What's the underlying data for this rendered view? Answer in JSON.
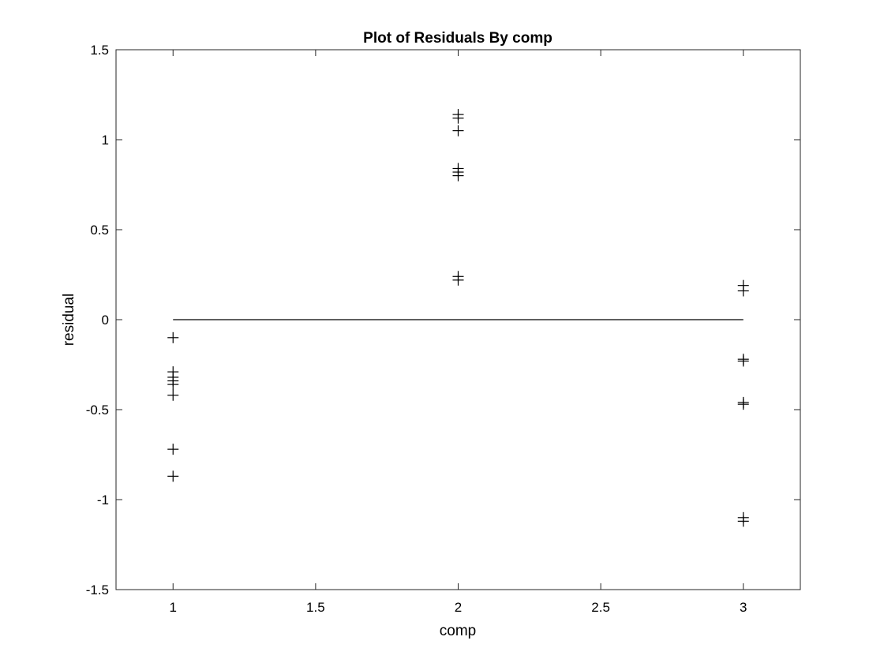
{
  "chart_data": {
    "type": "scatter",
    "title": "Plot of Residuals By comp",
    "xlabel": "comp",
    "ylabel": "residual",
    "xlim": [
      0.8,
      3.2
    ],
    "ylim": [
      -1.5,
      1.5
    ],
    "xticks": [
      "1",
      "1.5",
      "2",
      "2.5",
      "3"
    ],
    "xtick_values": [
      1,
      1.5,
      2,
      2.5,
      3
    ],
    "yticks": [
      "1.5",
      "1",
      "0.5",
      "0",
      "-0.5",
      "-1",
      "-1.5"
    ],
    "ytick_values": [
      1.5,
      1,
      0.5,
      0,
      -0.5,
      -1,
      -1.5
    ],
    "grid": false,
    "legend": "none",
    "marker": "+",
    "marker_color": "#000000",
    "reference_line": {
      "y": 0,
      "x_from": 1,
      "x_to": 3
    },
    "points": [
      {
        "x": 1,
        "y": -0.1
      },
      {
        "x": 1,
        "y": -0.29
      },
      {
        "x": 1,
        "y": -0.32
      },
      {
        "x": 1,
        "y": -0.34
      },
      {
        "x": 1,
        "y": -0.36
      },
      {
        "x": 1,
        "y": -0.42
      },
      {
        "x": 1,
        "y": -0.72
      },
      {
        "x": 1,
        "y": -0.87
      },
      {
        "x": 2,
        "y": 1.14
      },
      {
        "x": 2,
        "y": 1.12
      },
      {
        "x": 2,
        "y": 1.05
      },
      {
        "x": 2,
        "y": 0.84
      },
      {
        "x": 2,
        "y": 0.82
      },
      {
        "x": 2,
        "y": 0.8
      },
      {
        "x": 2,
        "y": 0.24
      },
      {
        "x": 2,
        "y": 0.22
      },
      {
        "x": 3,
        "y": 0.19
      },
      {
        "x": 3,
        "y": 0.16
      },
      {
        "x": 3,
        "y": -0.22
      },
      {
        "x": 3,
        "y": -0.23
      },
      {
        "x": 3,
        "y": -0.46
      },
      {
        "x": 3,
        "y": -0.47
      },
      {
        "x": 3,
        "y": -1.1
      },
      {
        "x": 3,
        "y": -1.12
      }
    ]
  }
}
